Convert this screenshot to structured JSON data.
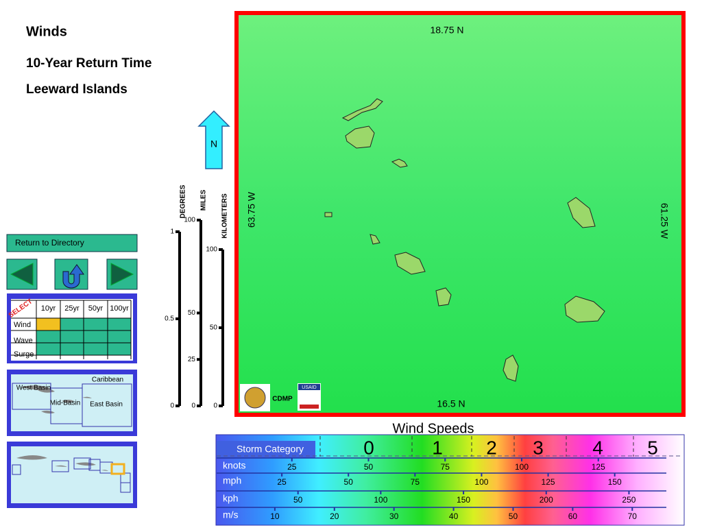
{
  "header": {
    "title": "Winds",
    "subtitle": "10-Year Return Time",
    "region": "Leeward Islands"
  },
  "north": "N",
  "scale": {
    "degrees": {
      "label": "DEGREES",
      "ticks": [
        1,
        0.5,
        0
      ]
    },
    "miles": {
      "label": "MILES",
      "ticks": [
        100,
        50,
        25,
        0
      ]
    },
    "kilometers": {
      "label": "KILOMETERS",
      "ticks": [
        100,
        50,
        0
      ]
    }
  },
  "nav": {
    "directory": "Return to Directory"
  },
  "selector": {
    "badge": "SELECT",
    "columns": [
      "10yr",
      "25yr",
      "50yr",
      "100yr"
    ],
    "rows": [
      "Wind",
      "Wave",
      "Surge"
    ]
  },
  "basins": [
    "West Basin",
    "Mid-Basin",
    "East Basin",
    "Caribbean"
  ],
  "map": {
    "north_lat": "18.75 N",
    "south_lat": "16.5 N",
    "west_lon": "63.75 W",
    "east_lon": "61.25 W",
    "logos": [
      "CDMP",
      "USAID"
    ]
  },
  "legend": {
    "title": "Wind Speeds",
    "category_label": "Storm Category",
    "categories": [
      "0",
      "1",
      "2",
      "3",
      "4",
      "5"
    ],
    "units": [
      {
        "name": "knots",
        "ticks": [
          25,
          50,
          75,
          100,
          125
        ]
      },
      {
        "name": "mph",
        "ticks": [
          25,
          50,
          75,
          100,
          125,
          150
        ]
      },
      {
        "name": "kph",
        "ticks": [
          50,
          100,
          150,
          200,
          250
        ]
      },
      {
        "name": "m/s",
        "ticks": [
          10,
          20,
          30,
          40,
          50,
          60,
          70
        ]
      }
    ]
  }
}
